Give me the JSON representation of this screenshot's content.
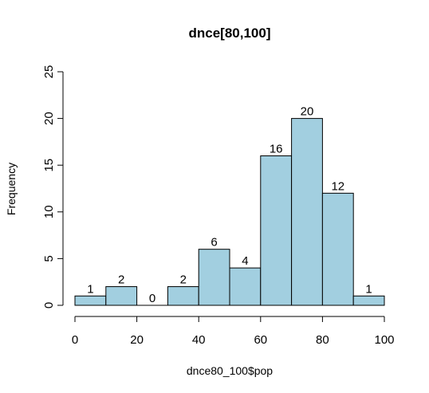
{
  "chart_data": {
    "type": "bar",
    "title": "dnce[80,100]",
    "xlabel": "dnce80_100$pop",
    "ylabel": "Frequency",
    "bin_edges": [
      0,
      10,
      20,
      30,
      40,
      50,
      60,
      70,
      80,
      90,
      100
    ],
    "values": [
      1,
      2,
      0,
      2,
      6,
      4,
      16,
      20,
      12,
      1
    ],
    "xlim": [
      0,
      100
    ],
    "ylim": [
      0,
      25
    ],
    "x_ticks": [
      0,
      20,
      40,
      60,
      80,
      100
    ],
    "y_ticks": [
      0,
      5,
      10,
      15,
      20,
      25
    ],
    "bar_color": "#a2cfe0",
    "grid": false,
    "legend": "none"
  }
}
